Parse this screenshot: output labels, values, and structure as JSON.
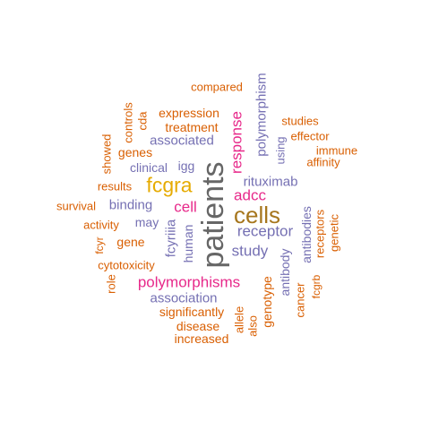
{
  "palette": {
    "orange": "#d95f02",
    "purple": "#7570b3",
    "pink": "#e7298a",
    "gold": "#e6ab02",
    "olive": "#a6761d",
    "gray": "#666666"
  },
  "words": [
    {
      "text": "patients",
      "color": "gray",
      "vertical": true
    },
    {
      "text": "cells",
      "color": "olive",
      "vertical": false
    },
    {
      "text": "fcgra",
      "color": "gold",
      "vertical": false
    },
    {
      "text": "polymorphisms",
      "color": "pink",
      "vertical": false
    },
    {
      "text": "adcc",
      "color": "pink",
      "vertical": false
    },
    {
      "text": "response",
      "color": "pink",
      "vertical": true
    },
    {
      "text": "cell",
      "color": "pink",
      "vertical": false
    },
    {
      "text": "polymorphism",
      "color": "purple",
      "vertical": true
    },
    {
      "text": "receptor",
      "color": "purple",
      "vertical": false
    },
    {
      "text": "study",
      "color": "purple",
      "vertical": false
    },
    {
      "text": "rituximab",
      "color": "purple",
      "vertical": false
    },
    {
      "text": "associated",
      "color": "purple",
      "vertical": false
    },
    {
      "text": "binding",
      "color": "purple",
      "vertical": false
    },
    {
      "text": "association",
      "color": "purple",
      "vertical": false
    },
    {
      "text": "fcyriiia",
      "color": "purple",
      "vertical": true
    },
    {
      "text": "human",
      "color": "purple",
      "vertical": true
    },
    {
      "text": "antibody",
      "color": "purple",
      "vertical": true
    },
    {
      "text": "antibodies",
      "color": "purple",
      "vertical": true
    },
    {
      "text": "clinical",
      "color": "purple",
      "vertical": false
    },
    {
      "text": "igg",
      "color": "purple",
      "vertical": false
    },
    {
      "text": "may",
      "color": "purple",
      "vertical": false
    },
    {
      "text": "using",
      "color": "purple",
      "vertical": true
    },
    {
      "text": "compared",
      "color": "orange",
      "vertical": false
    },
    {
      "text": "expression",
      "color": "orange",
      "vertical": false
    },
    {
      "text": "treatment",
      "color": "orange",
      "vertical": false
    },
    {
      "text": "genes",
      "color": "orange",
      "vertical": false
    },
    {
      "text": "results",
      "color": "orange",
      "vertical": false
    },
    {
      "text": "survival",
      "color": "orange",
      "vertical": false
    },
    {
      "text": "activity",
      "color": "orange",
      "vertical": false
    },
    {
      "text": "gene",
      "color": "orange",
      "vertical": false
    },
    {
      "text": "cytotoxicity",
      "color": "orange",
      "vertical": false
    },
    {
      "text": "significantly",
      "color": "orange",
      "vertical": false
    },
    {
      "text": "disease",
      "color": "orange",
      "vertical": false
    },
    {
      "text": "increased",
      "color": "orange",
      "vertical": false
    },
    {
      "text": "studies",
      "color": "orange",
      "vertical": false
    },
    {
      "text": "effector",
      "color": "orange",
      "vertical": false
    },
    {
      "text": "immune",
      "color": "orange",
      "vertical": false
    },
    {
      "text": "affinity",
      "color": "orange",
      "vertical": false
    },
    {
      "text": "controls",
      "color": "orange",
      "vertical": true
    },
    {
      "text": "cda",
      "color": "orange",
      "vertical": true
    },
    {
      "text": "showed",
      "color": "orange",
      "vertical": true
    },
    {
      "text": "fcyr",
      "color": "orange",
      "vertical": true
    },
    {
      "text": "role",
      "color": "orange",
      "vertical": true
    },
    {
      "text": "allele",
      "color": "orange",
      "vertical": true
    },
    {
      "text": "also",
      "color": "orange",
      "vertical": true
    },
    {
      "text": "genotype",
      "color": "orange",
      "vertical": true
    },
    {
      "text": "cancer",
      "color": "orange",
      "vertical": true
    },
    {
      "text": "fcgrb",
      "color": "orange",
      "vertical": true
    },
    {
      "text": "receptors",
      "color": "orange",
      "vertical": true
    },
    {
      "text": "genetic",
      "color": "orange",
      "vertical": true
    }
  ]
}
